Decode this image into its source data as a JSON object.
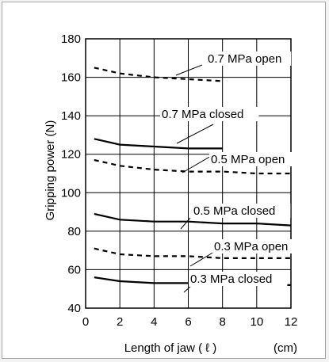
{
  "chart_data": {
    "type": "line",
    "xlabel": "Length of jaw ( ℓ )",
    "xunit": "(cm)",
    "ylabel": "Gripping power (N)",
    "xlim": [
      0,
      12
    ],
    "ylim": [
      40,
      180
    ],
    "xticks": [
      0,
      2,
      4,
      6,
      8,
      10,
      12
    ],
    "yticks": [
      40,
      60,
      80,
      100,
      120,
      140,
      160,
      180
    ],
    "grid": true,
    "series": [
      {
        "name": "0.7 MPa open",
        "style": "dashed",
        "x": [
          0.5,
          2,
          4,
          6,
          8
        ],
        "y": [
          165,
          162,
          160,
          159,
          158
        ]
      },
      {
        "name": "0.7 MPa closed",
        "style": "solid",
        "x": [
          0.5,
          2,
          4,
          6,
          8
        ],
        "y": [
          128,
          125,
          124,
          123,
          123
        ]
      },
      {
        "name": "0.5 MPa open",
        "style": "dashed",
        "x": [
          0.5,
          2,
          4,
          6,
          8,
          10,
          12
        ],
        "y": [
          117,
          114,
          112,
          111,
          111,
          110,
          110
        ]
      },
      {
        "name": "0.5 MPa closed",
        "style": "solid",
        "x": [
          0.5,
          2,
          4,
          6,
          8,
          10,
          12
        ],
        "y": [
          89,
          86,
          85,
          85,
          84,
          84,
          83
        ]
      },
      {
        "name": "0.3 MPa open",
        "style": "dashed",
        "x": [
          0.5,
          2,
          4,
          6,
          8,
          10,
          12
        ],
        "y": [
          71,
          68,
          67,
          67,
          66,
          66,
          66
        ]
      },
      {
        "name": "0.3 MPa closed",
        "style": "solid",
        "x": [
          0.5,
          2,
          4,
          6,
          8,
          10,
          12
        ],
        "y": [
          56,
          54,
          53,
          53,
          52,
          52,
          52
        ]
      }
    ],
    "colors": {
      "line": "#000000",
      "grid": "#000000",
      "frame": "#a9a9a9"
    }
  }
}
